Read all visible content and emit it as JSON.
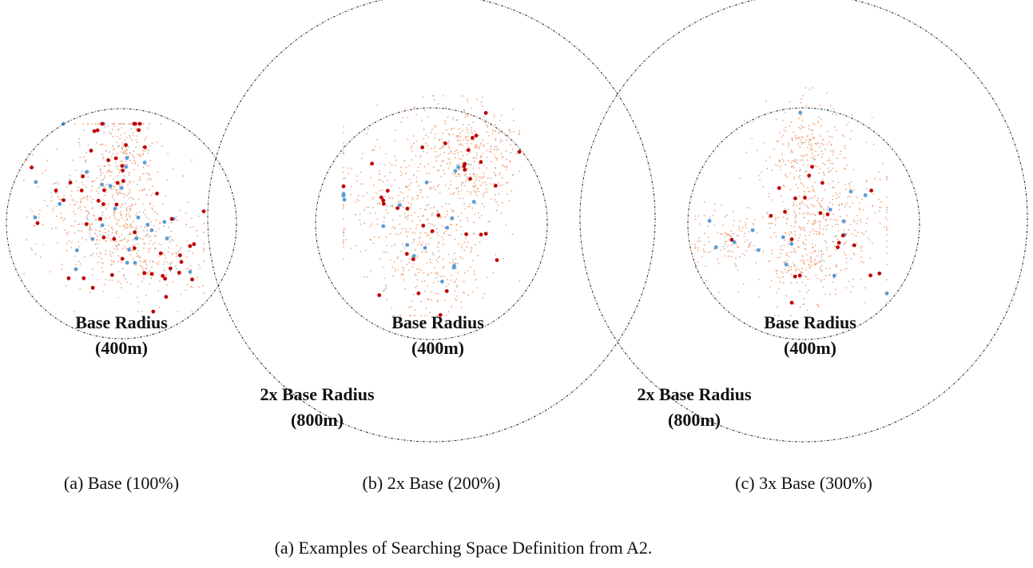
{
  "panels": [
    {
      "id": "a",
      "caption": "(a) Base (100%)",
      "inner_label_line1": "Base Radius",
      "inner_label_line2": "(400m)"
    },
    {
      "id": "b",
      "caption": "(b) 2x Base (200%)",
      "inner_label_line1": "Base Radius",
      "inner_label_line2": "(400m)",
      "outer_label_line1": "2x Base Radius",
      "outer_label_line2": "(800m)"
    },
    {
      "id": "c",
      "caption": "(c) 3x Base (300%)",
      "inner_label_line1": "Base Radius",
      "inner_label_line2": "(400m)",
      "outer_label_line1": "2x Base Radius",
      "outer_label_line2": "(800m)"
    }
  ],
  "figure_caption": "(a) Examples of Searching Space Definition from A2.",
  "colors": {
    "circle_stroke": "#222222",
    "dense_points": "#f2a47a",
    "gray_points": "#b0b0b0",
    "red_points": "#c00000",
    "blue_points": "#5b9bd5"
  }
}
